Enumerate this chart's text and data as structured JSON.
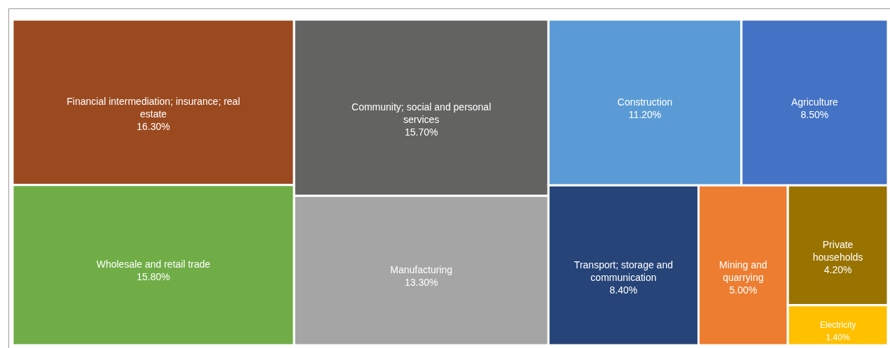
{
  "chart_data": {
    "type": "other",
    "categories": [
      "Financial intermediation; insurance; real estate",
      "Wholesale and retail trade",
      "Community; social and personal services",
      "Manufacturing",
      "Construction",
      "Agriculture",
      "Transport; storage and communication",
      "Mining and quarrying",
      "Private households",
      "Electricity"
    ],
    "values": [
      16.3,
      15.8,
      15.7,
      13.3,
      11.2,
      8.5,
      8.4,
      5.0,
      4.2,
      1.4
    ],
    "value_labels": [
      "16.30%",
      "15.80%",
      "15.70%",
      "13.30%",
      "11.20%",
      "8.50%",
      "8.40%",
      "5.00%",
      "4.20%",
      "1.40%"
    ],
    "colors": [
      "#9b4a20",
      "#70ad47",
      "#636462",
      "#a5a5a5",
      "#5b9bd5",
      "#4472c4",
      "#264478",
      "#ed7d31",
      "#997300",
      "#ffc000"
    ]
  }
}
